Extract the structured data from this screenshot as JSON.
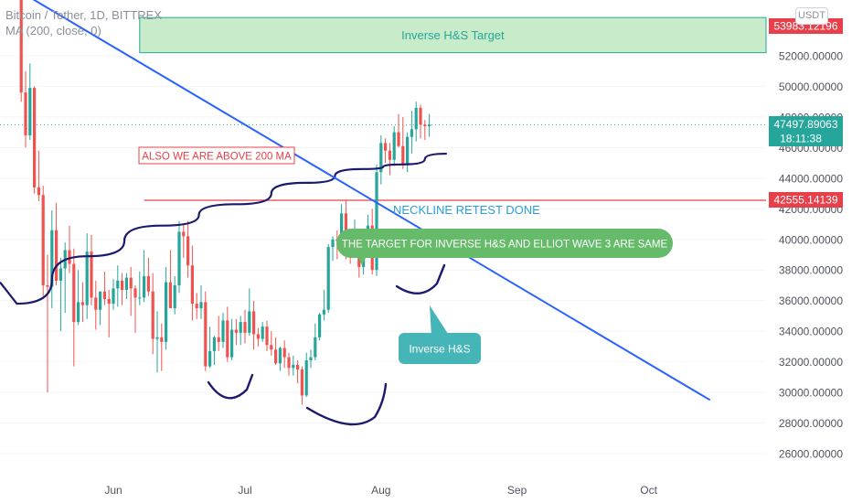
{
  "header": {
    "symbol_line": "Bitcoin / Tether, 1D, BITTREX",
    "ma_line": "MA (200, close, 0)",
    "currency_badge": "USDT"
  },
  "price_labels": {
    "target": "53983.12196",
    "last": "47497.89063",
    "countdown": "18:11:38",
    "neckline": "42555.14139"
  },
  "annotations": {
    "target_box": "Inverse H&S Target",
    "above_ma": "ALSO WE ARE ABOVE 200 MA",
    "neckline_retest": "NECKLINE RETEST DONE",
    "same_target": "THE TARGET FOR INVERSE H&S AND ELLIOT WAVE 3 ARE SAME",
    "inverse_hs": "Inverse H&S"
  },
  "colors": {
    "up": "#26a69a",
    "down": "#ef5350",
    "ma": "#1a1a6e",
    "trendline": "#2962ff",
    "target_box": "#c8ebc9",
    "callout_green": "#66bb6a",
    "callout_teal": "#45b5b8",
    "axis_text": "#50535e",
    "red_label": "#e8404a",
    "teal_label": "#26a69a"
  },
  "chart_data": {
    "type": "candlestick",
    "y_ticks": [
      "52000.00000",
      "50000.00000",
      "48000.00000",
      "46000.00000",
      "44000.00000",
      "42000.00000",
      "40000.00000",
      "38000.00000",
      "36000.00000",
      "34000.00000",
      "32000.00000",
      "30000.00000",
      "28000.00000",
      "26000.00000"
    ],
    "x_ticks": [
      "Jun",
      "Jul",
      "Aug",
      "Sep",
      "Oct"
    ],
    "ylim": [
      25000,
      56000
    ],
    "x_axis_dates": {
      "Jun": "2021-06-01",
      "Jul": "2021-07-01",
      "Aug": "2021-08-01",
      "Sep": "2021-09-01",
      "Oct": "2021-10-01"
    },
    "first_candle_date": "2021-05-10",
    "candles": [
      [
        58000,
        59500,
        56500,
        56700
      ],
      [
        56700,
        57800,
        49000,
        49600
      ],
      [
        49600,
        51000,
        46000,
        46800
      ],
      [
        46800,
        51500,
        46500,
        49900
      ],
      [
        49900,
        50000,
        43000,
        43400
      ],
      [
        43400,
        45800,
        42500,
        42900
      ],
      [
        42900,
        43500,
        36300,
        37000
      ],
      [
        37000,
        39000,
        30000,
        36900
      ],
      [
        36900,
        41900,
        35500,
        40600
      ],
      [
        40600,
        42400,
        37000,
        37300
      ],
      [
        37300,
        38800,
        34000,
        38100
      ],
      [
        38100,
        39800,
        35200,
        39300
      ],
      [
        39300,
        40900,
        37800,
        38400
      ],
      [
        38400,
        39400,
        31700,
        34600
      ],
      [
        34600,
        38000,
        34400,
        35900
      ],
      [
        35900,
        37200,
        34600,
        35700
      ],
      [
        35700,
        40400,
        34800,
        39200
      ],
      [
        39200,
        40300,
        35700,
        36200
      ],
      [
        36200,
        37300,
        34100,
        35400
      ],
      [
        35400,
        36600,
        34400,
        36600
      ],
      [
        36600,
        37900,
        35700,
        36100
      ],
      [
        36100,
        36700,
        33600,
        35800
      ],
      [
        35800,
        37400,
        35400,
        36800
      ],
      [
        36800,
        38300,
        35600,
        37300
      ],
      [
        37300,
        37800,
        35700,
        36700
      ],
      [
        36700,
        37800,
        36100,
        37500
      ],
      [
        37500,
        38200,
        35000,
        36800
      ],
      [
        36800,
        37000,
        33900,
        36200
      ],
      [
        36200,
        37900,
        35700,
        36200
      ],
      [
        36200,
        39300,
        35900,
        37600
      ],
      [
        37600,
        38800,
        36300,
        36600
      ],
      [
        36600,
        37800,
        32500,
        33500
      ],
      [
        33500,
        35300,
        31300,
        33600
      ],
      [
        33600,
        34500,
        31400,
        33300
      ],
      [
        33300,
        38200,
        32800,
        37200
      ],
      [
        37200,
        39300,
        35700,
        35500
      ],
      [
        35500,
        37600,
        35100,
        37000
      ],
      [
        37000,
        41200,
        36500,
        40500
      ],
      [
        40500,
        41000,
        38800,
        40200
      ],
      [
        40200,
        41200,
        37500,
        38300
      ],
      [
        38300,
        39600,
        34700,
        35800
      ],
      [
        35800,
        36500,
        34800,
        35500
      ],
      [
        35500,
        37000,
        34800,
        35900
      ],
      [
        35900,
        36600,
        31400,
        31700
      ],
      [
        31700,
        34300,
        31600,
        32700
      ],
      [
        32700,
        33700,
        31800,
        33600
      ],
      [
        33600,
        35000,
        32700,
        33300
      ],
      [
        33300,
        35200,
        32900,
        34700
      ],
      [
        34700,
        35600,
        32000,
        32300
      ],
      [
        32300,
        34800,
        32100,
        34100
      ],
      [
        34100,
        34800,
        33100,
        33900
      ],
      [
        33900,
        35000,
        33100,
        34600
      ],
      [
        34600,
        35400,
        33200,
        33900
      ],
      [
        33900,
        36800,
        33700,
        35300
      ],
      [
        35300,
        36000,
        32800,
        33800
      ],
      [
        33800,
        34200,
        33000,
        33500
      ],
      [
        33500,
        34600,
        33300,
        34300
      ],
      [
        34300,
        34700,
        32700,
        33100
      ],
      [
        33100,
        34000,
        32400,
        32800
      ],
      [
        32800,
        33600,
        31800,
        31900
      ],
      [
        31900,
        33000,
        31400,
        32900
      ],
      [
        32900,
        33400,
        31600,
        32300
      ],
      [
        32300,
        32600,
        31100,
        31600
      ],
      [
        31600,
        32400,
        31100,
        31800
      ],
      [
        31800,
        32100,
        30600,
        31500
      ],
      [
        31500,
        31700,
        29200,
        29800
      ],
      [
        29800,
        32600,
        29700,
        32100
      ],
      [
        32100,
        32800,
        31600,
        32300
      ],
      [
        32300,
        34500,
        32100,
        33600
      ],
      [
        33600,
        35200,
        33400,
        35100
      ],
      [
        35100,
        36700,
        34700,
        35400
      ],
      [
        35400,
        39700,
        35200,
        39500
      ],
      [
        39500,
        40200,
        38600,
        40000
      ],
      [
        40000,
        40600,
        38700,
        39900
      ],
      [
        39900,
        42300,
        39600,
        41700
      ],
      [
        41700,
        42600,
        38700,
        39800
      ],
      [
        39800,
        40300,
        38400,
        39400
      ],
      [
        39400,
        41300,
        39200,
        40300
      ],
      [
        40300,
        40700,
        37500,
        38200
      ],
      [
        38200,
        39900,
        37700,
        39700
      ],
      [
        39700,
        41600,
        39400,
        40900
      ],
      [
        40900,
        42000,
        37700,
        38000
      ],
      [
        38000,
        44900,
        37600,
        44400
      ],
      [
        44400,
        46800,
        43600,
        46300
      ],
      [
        46300,
        46600,
        45000,
        45800
      ],
      [
        45800,
        46300,
        44200,
        45200
      ],
      [
        45200,
        47400,
        44800,
        47000
      ],
      [
        47000,
        48200,
        46000,
        46100
      ],
      [
        46100,
        48000,
        44600,
        44900
      ],
      [
        44900,
        47000,
        44400,
        46700
      ],
      [
        46700,
        48400,
        45600,
        47200
      ],
      [
        47200,
        49000,
        46400,
        48600
      ],
      [
        48600,
        48800,
        46600,
        47500
      ],
      [
        47500,
        47800,
        46500,
        47400
      ],
      [
        47400,
        48200,
        46700,
        47500
      ]
    ],
    "ma200": [
      {
        "date": "2021-05-10",
        "value": 35800
      },
      {
        "date": "2021-05-26",
        "value": 38900
      },
      {
        "date": "2021-06-12",
        "value": 40900
      },
      {
        "date": "2021-06-29",
        "value": 42300
      },
      {
        "date": "2021-07-15",
        "value": 43700
      },
      {
        "date": "2021-07-28",
        "value": 44600
      },
      {
        "date": "2021-08-06",
        "value": 44900
      },
      {
        "date": "2021-08-16",
        "value": 45600
      }
    ],
    "trendline": [
      {
        "date": "2021-05-06",
        "value": 57000
      },
      {
        "date": "2021-10-15",
        "value": 29500
      }
    ],
    "target_zone": {
      "from": "2021-06-07",
      "to": "2021-10-31",
      "low": 52200,
      "high": 54500
    },
    "neckline": {
      "from": "2021-06-08",
      "to": "2021-10-31",
      "value": 42555.14139
    },
    "last_price": 47497.89063
  }
}
